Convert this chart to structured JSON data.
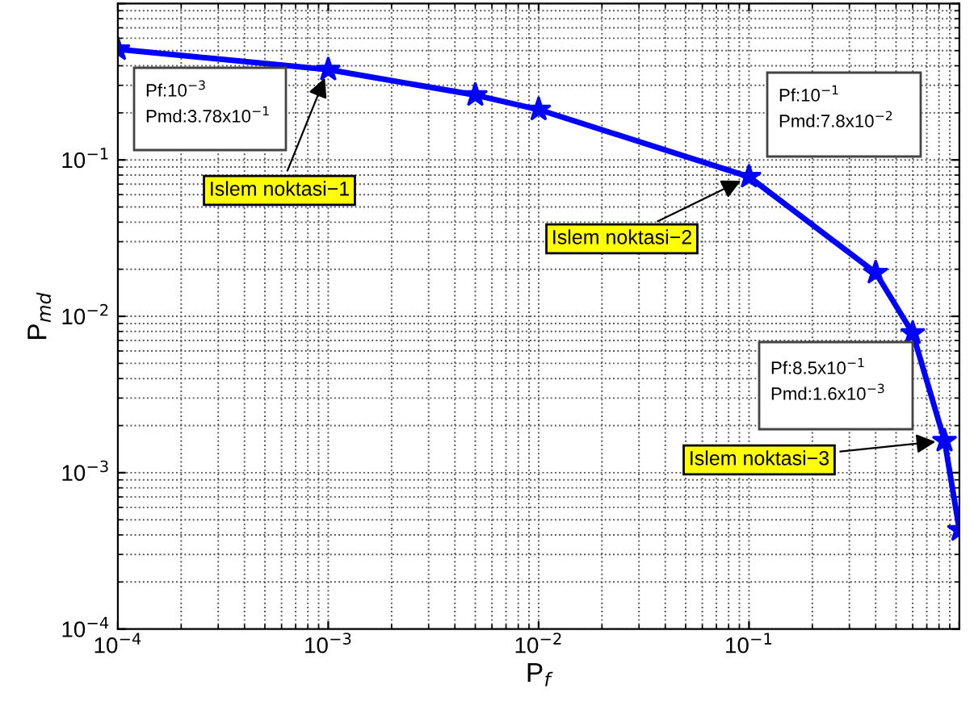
{
  "chart_data": {
    "type": "line",
    "xlabel": "P$_{f}$",
    "ylabel": "P$_{md}$",
    "x": [
      0.0001,
      0.001,
      0.005,
      0.01,
      0.1,
      0.4,
      0.6,
      0.85,
      1
    ],
    "series": [
      {
        "color": "#0000ff",
        "values": [
          0.51,
          0.378,
          0.26,
          0.21,
          0.078,
          0.019,
          0.0078,
          0.0016,
          0.00043
        ]
      }
    ],
    "log": "xy",
    "xlim": [
      0.0001,
      1
    ],
    "ylim": [
      0.0001,
      1
    ],
    "xticks": [
      {
        "value": 0.0001,
        "label": "10$^{−4}$"
      },
      {
        "value": 0.001,
        "label": "10$^{−3}$"
      },
      {
        "value": 0.01,
        "label": "10$^{−2}$"
      },
      {
        "value": 0.1,
        "label": "10$^{−1}$"
      },
      {
        "value": 1,
        "label": null
      }
    ],
    "yticks": [
      {
        "value": 0.0001,
        "label": "10$^{−4}$"
      },
      {
        "value": 0.001,
        "label": "10$^{−3}$"
      },
      {
        "value": 0.01,
        "label": "10$^{−2}$"
      },
      {
        "value": 0.1,
        "label": "10$^{−1}$"
      },
      {
        "value": 1,
        "label": null
      }
    ],
    "grid": true,
    "marker": "star",
    "line_style": "solid",
    "annotations": [
      "Pf:10$^{−3}$",
      "Pmd:3.78x10$^{−1}$",
      {
        "text": "Islem noktasi−1",
        "x": 0.001,
        "y": 0.378
      },
      "Pf:10$^{−1}$",
      "Pmd:7.8x10$^{−2}$",
      {
        "text": "Islem noktasi−2",
        "x": 0.1,
        "y": 0.078
      },
      "Pf:8.5x10$^{−1}$",
      "Pmd:1.6x10$^{−3}$",
      {
        "text": "Islem noktasi−3",
        "x": 0.85,
        "y": 0.0016
      }
    ]
  }
}
